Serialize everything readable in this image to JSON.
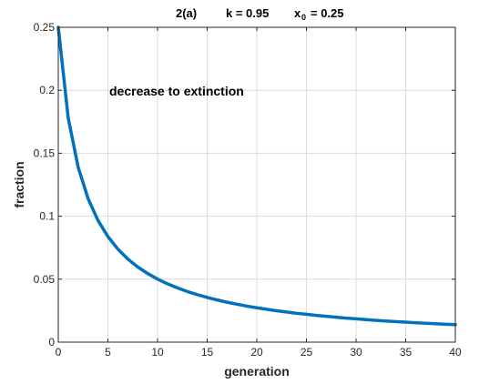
{
  "chart_data": {
    "type": "line",
    "title_parts": {
      "label": "2(a)",
      "k_text": "k  =  0.95",
      "x0_var": "x",
      "x0_sub": "0",
      "x0_value": "=  0.25"
    },
    "xlabel": "generation",
    "ylabel": "fraction",
    "annotation": "decrease to extinction",
    "xlim": [
      0,
      40
    ],
    "ylim": [
      0,
      0.25
    ],
    "xticks": [
      0,
      5,
      10,
      15,
      20,
      25,
      30,
      35,
      40
    ],
    "yticks": [
      0,
      0.05,
      0.1,
      0.15,
      0.2,
      0.25
    ],
    "xtick_labels": [
      "0",
      "5",
      "10",
      "15",
      "20",
      "25",
      "30",
      "35",
      "40"
    ],
    "ytick_labels": [
      "0",
      "0.05",
      "0.1",
      "0.15",
      "0.2",
      "0.25"
    ],
    "grid": true,
    "series": [
      {
        "color": "#0072BD",
        "x": [
          0,
          1,
          2,
          3,
          4,
          5,
          6,
          7,
          8,
          9,
          10,
          11,
          12,
          13,
          14,
          15,
          16,
          17,
          18,
          19,
          20,
          21,
          22,
          23,
          24,
          25,
          26,
          27,
          28,
          29,
          30,
          31,
          32,
          33,
          34,
          35,
          36,
          37,
          38,
          39,
          40
        ],
        "y": [
          0.25,
          0.178,
          0.139,
          0.114,
          0.0966,
          0.0838,
          0.0739,
          0.066,
          0.0597,
          0.0545,
          0.0501,
          0.0463,
          0.0431,
          0.0402,
          0.0377,
          0.0355,
          0.0335,
          0.0317,
          0.0301,
          0.0286,
          0.0273,
          0.0261,
          0.0249,
          0.0239,
          0.0229,
          0.0221,
          0.0212,
          0.0205,
          0.0198,
          0.0191,
          0.0185,
          0.0179,
          0.0173,
          0.0168,
          0.0163,
          0.0159,
          0.0154,
          0.015,
          0.0146,
          0.0142,
          0.0139
        ]
      }
    ]
  }
}
